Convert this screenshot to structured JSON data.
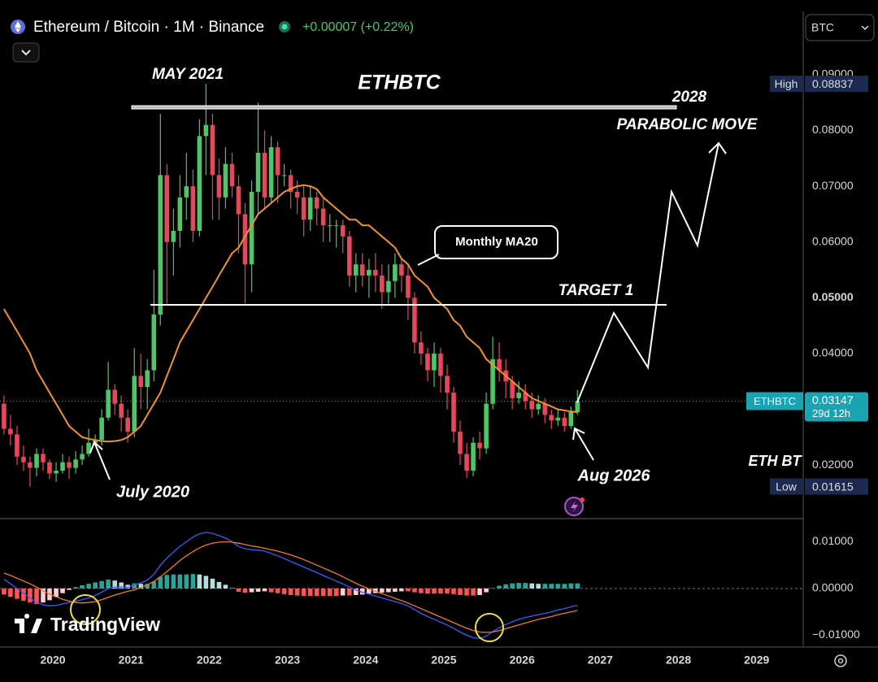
{
  "header": {
    "symbol": "Ethereum / Bitcoin · 1M · Binance",
    "change": "+0.00007 (+0.22%)",
    "currency": "BTC",
    "watermark": "TradingView"
  },
  "chart_data": {
    "type": "candlestick",
    "title": "ETHBTC",
    "annotations": {
      "may": "MAY 2021",
      "year": "2028",
      "parabolic": "PARABOLIC MOVE",
      "target": "TARGET 1",
      "july": "July 2020",
      "aug": "Aug 2026",
      "side": "ETH BT"
    },
    "high_label": "High",
    "low_label": "Low",
    "countdown": "29d 12h",
    "grid": false,
    "xlim": [
      2019.324,
      2029.595
    ],
    "xticks": [
      2020,
      2021,
      2022,
      2023,
      2024,
      2025,
      2026,
      2027,
      2028,
      2029
    ],
    "ylim": [
      0.0104,
      0.1034
    ],
    "yticks": [
      {
        "value": 0.09,
        "label": "0.09000"
      },
      {
        "value": 0.08,
        "label": "0.08000"
      },
      {
        "value": 0.07,
        "label": "0.07000"
      },
      {
        "value": 0.06,
        "label": "0.06000"
      },
      {
        "value": 0.05,
        "label": "0.05000"
      },
      {
        "value": 0.04,
        "label": "0.04000"
      },
      {
        "value": 0.02,
        "label": "0.02000"
      }
    ],
    "x": [
      2019.375,
      2019.458,
      2019.542,
      2019.625,
      2019.708,
      2019.792,
      2019.875,
      2019.958,
      2020.042,
      2020.125,
      2020.208,
      2020.292,
      2020.375,
      2020.458,
      2020.542,
      2020.625,
      2020.708,
      2020.792,
      2020.875,
      2020.958,
      2021.042,
      2021.125,
      2021.208,
      2021.292,
      2021.375,
      2021.458,
      2021.542,
      2021.625,
      2021.708,
      2021.792,
      2021.875,
      2021.958,
      2022.042,
      2022.125,
      2022.208,
      2022.292,
      2022.375,
      2022.458,
      2022.542,
      2022.625,
      2022.708,
      2022.792,
      2022.875,
      2022.958,
      2023.042,
      2023.125,
      2023.208,
      2023.292,
      2023.375,
      2023.458,
      2023.542,
      2023.625,
      2023.708,
      2023.792,
      2023.875,
      2023.958,
      2024.042,
      2024.125,
      2024.208,
      2024.292,
      2024.375,
      2024.458,
      2024.542,
      2024.625,
      2024.708,
      2024.792,
      2024.875,
      2024.958,
      2025.042,
      2025.125,
      2025.208,
      2025.292,
      2025.375,
      2025.458,
      2025.542,
      2025.625,
      2025.708,
      2025.792,
      2025.875,
      2025.958,
      2026.042,
      2026.125,
      2026.208,
      2026.292,
      2026.375,
      2026.458,
      2026.542,
      2026.625,
      2026.708
    ],
    "series": [
      {
        "name": "ETHBTC",
        "up_color": "#4cc764",
        "down_color": "#e8465a",
        "ohlc": [
          [
            0.031,
            0.0325,
            0.0255,
            0.0265
          ],
          [
            0.0265,
            0.029,
            0.0235,
            0.0255
          ],
          [
            0.0255,
            0.027,
            0.02,
            0.0215
          ],
          [
            0.0215,
            0.0235,
            0.019,
            0.0205
          ],
          [
            0.0205,
            0.0215,
            0.01615,
            0.0195
          ],
          [
            0.0195,
            0.023,
            0.018,
            0.022
          ],
          [
            0.022,
            0.023,
            0.019,
            0.0205
          ],
          [
            0.0205,
            0.021,
            0.0175,
            0.0185
          ],
          [
            0.0185,
            0.0205,
            0.017,
            0.019
          ],
          [
            0.019,
            0.022,
            0.0185,
            0.0205
          ],
          [
            0.0205,
            0.0215,
            0.0175,
            0.0195
          ],
          [
            0.0195,
            0.0225,
            0.0185,
            0.021
          ],
          [
            0.021,
            0.0235,
            0.02,
            0.022
          ],
          [
            0.022,
            0.0265,
            0.0215,
            0.024
          ],
          [
            0.024,
            0.0255,
            0.0235,
            0.0245
          ],
          [
            0.0245,
            0.03,
            0.0235,
            0.0285
          ],
          [
            0.0285,
            0.0385,
            0.028,
            0.0335
          ],
          [
            0.0335,
            0.0345,
            0.029,
            0.031
          ],
          [
            0.031,
            0.0325,
            0.026,
            0.0285
          ],
          [
            0.0285,
            0.03,
            0.024,
            0.026
          ],
          [
            0.026,
            0.041,
            0.025,
            0.036
          ],
          [
            0.036,
            0.04,
            0.03,
            0.034
          ],
          [
            0.034,
            0.039,
            0.03,
            0.037
          ],
          [
            0.037,
            0.055,
            0.035,
            0.047
          ],
          [
            0.047,
            0.083,
            0.045,
            0.072
          ],
          [
            0.072,
            0.074,
            0.049,
            0.06
          ],
          [
            0.06,
            0.066,
            0.054,
            0.062
          ],
          [
            0.062,
            0.072,
            0.059,
            0.068
          ],
          [
            0.068,
            0.076,
            0.064,
            0.07
          ],
          [
            0.07,
            0.073,
            0.06,
            0.062
          ],
          [
            0.062,
            0.082,
            0.061,
            0.079
          ],
          [
            0.079,
            0.08837,
            0.072,
            0.081
          ],
          [
            0.081,
            0.083,
            0.064,
            0.072
          ],
          [
            0.072,
            0.075,
            0.064,
            0.068
          ],
          [
            0.068,
            0.077,
            0.066,
            0.074
          ],
          [
            0.074,
            0.076,
            0.068,
            0.07
          ],
          [
            0.07,
            0.072,
            0.058,
            0.065
          ],
          [
            0.065,
            0.067,
            0.049,
            0.056
          ],
          [
            0.056,
            0.071,
            0.051,
            0.069
          ],
          [
            0.069,
            0.085,
            0.065,
            0.076
          ],
          [
            0.076,
            0.08,
            0.066,
            0.068
          ],
          [
            0.068,
            0.079,
            0.067,
            0.077
          ],
          [
            0.077,
            0.078,
            0.067,
            0.072
          ],
          [
            0.072,
            0.074,
            0.07,
            0.072
          ],
          [
            0.072,
            0.073,
            0.066,
            0.069
          ],
          [
            0.069,
            0.071,
            0.065,
            0.068
          ],
          [
            0.068,
            0.07,
            0.061,
            0.064
          ],
          [
            0.064,
            0.07,
            0.062,
            0.068
          ],
          [
            0.068,
            0.069,
            0.063,
            0.066
          ],
          [
            0.066,
            0.068,
            0.06,
            0.063
          ],
          [
            0.063,
            0.065,
            0.06,
            0.063
          ],
          [
            0.063,
            0.064,
            0.059,
            0.063
          ],
          [
            0.063,
            0.064,
            0.058,
            0.061
          ],
          [
            0.061,
            0.062,
            0.052,
            0.054
          ],
          [
            0.054,
            0.058,
            0.051,
            0.056
          ],
          [
            0.056,
            0.058,
            0.052,
            0.054
          ],
          [
            0.054,
            0.057,
            0.05,
            0.055
          ],
          [
            0.055,
            0.058,
            0.051,
            0.054
          ],
          [
            0.054,
            0.056,
            0.048,
            0.051
          ],
          [
            0.051,
            0.056,
            0.049,
            0.053
          ],
          [
            0.053,
            0.058,
            0.05,
            0.056
          ],
          [
            0.056,
            0.057,
            0.051,
            0.054
          ],
          [
            0.054,
            0.056,
            0.046,
            0.05
          ],
          [
            0.05,
            0.051,
            0.04,
            0.042
          ],
          [
            0.042,
            0.044,
            0.038,
            0.04
          ],
          [
            0.04,
            0.041,
            0.035,
            0.037
          ],
          [
            0.037,
            0.042,
            0.034,
            0.04
          ],
          [
            0.04,
            0.041,
            0.033,
            0.036
          ],
          [
            0.036,
            0.038,
            0.03,
            0.033
          ],
          [
            0.033,
            0.034,
            0.024,
            0.026
          ],
          [
            0.026,
            0.028,
            0.02,
            0.022
          ],
          [
            0.022,
            0.024,
            0.0177,
            0.019
          ],
          [
            0.019,
            0.025,
            0.018,
            0.024
          ],
          [
            0.024,
            0.026,
            0.021,
            0.023
          ],
          [
            0.023,
            0.033,
            0.022,
            0.031
          ],
          [
            0.031,
            0.043,
            0.03,
            0.039
          ],
          [
            0.039,
            0.042,
            0.035,
            0.037
          ],
          [
            0.037,
            0.039,
            0.032,
            0.035
          ],
          [
            0.035,
            0.036,
            0.03,
            0.032
          ],
          [
            0.032,
            0.035,
            0.031,
            0.033
          ],
          [
            0.033,
            0.0345,
            0.03,
            0.0315
          ],
          [
            0.0315,
            0.033,
            0.0285,
            0.03
          ],
          [
            0.03,
            0.0325,
            0.029,
            0.031
          ],
          [
            0.031,
            0.032,
            0.0275,
            0.029
          ],
          [
            0.029,
            0.03,
            0.0265,
            0.028
          ],
          [
            0.028,
            0.03,
            0.027,
            0.0285
          ],
          [
            0.0285,
            0.0295,
            0.026,
            0.027
          ],
          [
            0.027,
            0.0305,
            0.0265,
            0.0295
          ],
          [
            0.0295,
            0.0335,
            0.029,
            0.03147
          ]
        ]
      },
      {
        "name": "Monthly MA20",
        "color": "#f0922e",
        "values": [
          0.048,
          0.046,
          0.044,
          0.042,
          0.04,
          0.037,
          0.035,
          0.033,
          0.031,
          0.029,
          0.027,
          0.026,
          0.025,
          0.0247,
          0.0245,
          0.0243,
          0.0242,
          0.0243,
          0.0245,
          0.025,
          0.026,
          0.027,
          0.029,
          0.031,
          0.033,
          0.036,
          0.039,
          0.042,
          0.044,
          0.046,
          0.048,
          0.05,
          0.052,
          0.054,
          0.056,
          0.058,
          0.059,
          0.061,
          0.063,
          0.065,
          0.066,
          0.067,
          0.068,
          0.069,
          0.0695,
          0.07,
          0.0702,
          0.07,
          0.0695,
          0.068,
          0.067,
          0.066,
          0.065,
          0.064,
          0.064,
          0.063,
          0.063,
          0.062,
          0.061,
          0.06,
          0.059,
          0.057,
          0.056,
          0.054,
          0.053,
          0.052,
          0.05,
          0.049,
          0.048,
          0.046,
          0.045,
          0.043,
          0.042,
          0.041,
          0.039,
          0.038,
          0.037,
          0.036,
          0.035,
          0.034,
          0.033,
          0.032,
          0.0315,
          0.031,
          0.0305,
          0.03,
          0.0298,
          0.0296,
          0.0295
        ]
      }
    ],
    "macd": {
      "ylim": [
        -0.01235,
        0.0146
      ],
      "yticks": [
        {
          "value": 0.01,
          "label": "0.01000"
        },
        {
          "value": 0,
          "label": "0.00000"
        },
        {
          "value": -0.01,
          "label": "−0.01000"
        }
      ],
      "macd_color": "#3a5bff",
      "signal_color": "#f07a2a",
      "histogram_colors": [
        "#26a69a",
        "#b2dfdb",
        "#ff5252",
        "#ffcdd2"
      ],
      "macd": [
        0.002,
        0.001,
        0,
        -0.001,
        -0.002,
        -0.003,
        -0.0035,
        -0.0037,
        -0.0036,
        -0.0033,
        -0.003,
        -0.0027,
        -0.0024,
        -0.002,
        -0.0015,
        -0.0008,
        0,
        0.0003,
        0.0003,
        0.0002,
        0.0008,
        0.0012,
        0.0018,
        0.003,
        0.005,
        0.0065,
        0.0078,
        0.009,
        0.01,
        0.011,
        0.0117,
        0.012,
        0.0118,
        0.0113,
        0.0108,
        0.01,
        0.009,
        0.0085,
        0.0083,
        0.0082,
        0.008,
        0.0075,
        0.007,
        0.0064,
        0.0058,
        0.0052,
        0.0046,
        0.004,
        0.0034,
        0.0028,
        0.0022,
        0.0016,
        0.001,
        0.0003,
        -0.0003,
        -0.0008,
        -0.0012,
        -0.0016,
        -0.002,
        -0.0024,
        -0.0028,
        -0.0032,
        -0.0037,
        -0.0045,
        -0.0053,
        -0.006,
        -0.0066,
        -0.0072,
        -0.0078,
        -0.0085,
        -0.0093,
        -0.01,
        -0.0105,
        -0.0107,
        -0.0102,
        -0.0092,
        -0.0084,
        -0.0077,
        -0.0071,
        -0.0066,
        -0.0062,
        -0.0059,
        -0.0056,
        -0.0053,
        -0.005,
        -0.0046,
        -0.0043,
        -0.0039,
        -0.0036
      ],
      "signal": [
        0.0033,
        0.0028,
        0.0022,
        0.0016,
        0.001,
        0.0003,
        -0.0005,
        -0.0012,
        -0.0018,
        -0.0023,
        -0.0027,
        -0.003,
        -0.0031,
        -0.003,
        -0.0028,
        -0.0024,
        -0.0019,
        -0.0014,
        -0.001,
        -0.0006,
        -0.0003,
        0.0002,
        0.0008,
        0.0015,
        0.0025,
        0.0036,
        0.0048,
        0.006,
        0.007,
        0.0079,
        0.0087,
        0.0093,
        0.0097,
        0.0099,
        0.01,
        0.0099,
        0.0097,
        0.0094,
        0.0091,
        0.0089,
        0.0086,
        0.0083,
        0.008,
        0.0076,
        0.0072,
        0.0067,
        0.0062,
        0.0056,
        0.005,
        0.0044,
        0.0038,
        0.0032,
        0.0025,
        0.0018,
        0.0011,
        0.0005,
        -0.0001,
        -0.0006,
        -0.0011,
        -0.0016,
        -0.0021,
        -0.0026,
        -0.0031,
        -0.0037,
        -0.0043,
        -0.0049,
        -0.0055,
        -0.0061,
        -0.0067,
        -0.0073,
        -0.0079,
        -0.0085,
        -0.009,
        -0.0093,
        -0.0094,
        -0.0093,
        -0.009,
        -0.0086,
        -0.0082,
        -0.0078,
        -0.0074,
        -0.007,
        -0.0066,
        -0.0063,
        -0.006,
        -0.0056,
        -0.0053,
        -0.005,
        -0.0047
      ],
      "histogram": [
        -0.0013,
        -0.0018,
        -0.0022,
        -0.0026,
        -0.003,
        -0.0033,
        -0.003,
        -0.0025,
        -0.0018,
        -0.001,
        -0.0003,
        0.0003,
        0.0007,
        0.001,
        0.0013,
        0.0016,
        0.0019,
        0.0017,
        0.0013,
        0.0008,
        0.0011,
        0.001,
        0.001,
        0.0015,
        0.0025,
        0.0029,
        0.003,
        0.003,
        0.003,
        0.0031,
        0.003,
        0.0027,
        0.0021,
        0.0014,
        0.0008,
        0.0001,
        -0.0007,
        -0.0009,
        -0.0008,
        -0.0007,
        -0.0006,
        -0.0008,
        -0.001,
        -0.0012,
        -0.0014,
        -0.0015,
        -0.0016,
        -0.0016,
        -0.0016,
        -0.0016,
        -0.0016,
        -0.0016,
        -0.0015,
        -0.0015,
        -0.0014,
        -0.0013,
        -0.0011,
        -0.001,
        -0.0009,
        -0.0008,
        -0.0007,
        -0.0006,
        -0.0006,
        -0.0008,
        -0.001,
        -0.0011,
        -0.0011,
        -0.0011,
        -0.0011,
        -0.0012,
        -0.0014,
        -0.0015,
        -0.0015,
        -0.0014,
        -0.0008,
        0.0001,
        0.0006,
        0.0009,
        0.0011,
        0.0012,
        0.0012,
        0.0011,
        0.001,
        0.001,
        0.001,
        0.001,
        0.001,
        0.0011,
        0.0011
      ]
    }
  }
}
